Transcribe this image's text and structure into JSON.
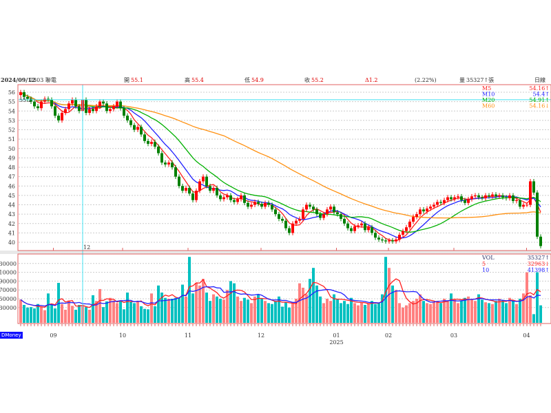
{
  "header": {
    "date": "2024/09/12",
    "symbol": "2303 聯電",
    "open_label": "開",
    "open": "55.1",
    "high_label": "高",
    "high": "55.4",
    "low_label": "低",
    "low": "54.9",
    "close_label": "收",
    "close": "55.2",
    "change": "Δ1.2",
    "change_pct": "(2.22%)",
    "volume_label": "量",
    "volume": "35327↑張",
    "period": "日線"
  },
  "crosshair": {
    "price_label": "55.2",
    "day_label": "12"
  },
  "legend_price": [
    {
      "name": "M5",
      "value": "54.16↑",
      "color": "#ff2020"
    },
    {
      "name": "M10",
      "value": "54.4↑",
      "color": "#2020ff"
    },
    {
      "name": "M20",
      "value": "54.91↑",
      "color": "#00b000"
    },
    {
      "name": "M60",
      "value": "54.16↓",
      "color": "#ff9010"
    }
  ],
  "legend_volume": [
    {
      "name": "VOL",
      "value": "35327↑",
      "color": "#333366"
    },
    {
      "name": "5",
      "value": "32963↓",
      "color": "#ff2020"
    },
    {
      "name": "10",
      "value": "41398↑",
      "color": "#2020ff"
    }
  ],
  "badge": "DMoney",
  "colors": {
    "up": "#ff0000",
    "down": "#008000",
    "vol_up": "#ff8080",
    "vol_down": "#00c0c0",
    "frame": "#e06060",
    "crosshair": "#40e0f0"
  },
  "chart_data": {
    "type": "candlestick",
    "price_axis": {
      "ticks": [
        "40",
        "41",
        "42",
        "43",
        "44",
        "45",
        "46",
        "47",
        "48",
        "49",
        "50",
        "51",
        "52",
        "53",
        "54",
        "55",
        "56"
      ],
      "range": [
        40,
        56
      ]
    },
    "volume_axis": {
      "ticks": [
        "30000",
        "50000",
        "70000",
        "90000",
        "110000",
        "130000"
      ],
      "range": [
        0,
        130000
      ]
    },
    "x_ticks": [
      {
        "label": "09",
        "index": 9.5
      },
      {
        "label": "10",
        "index": 29.6
      },
      {
        "label": "11",
        "index": 48.6
      },
      {
        "label": "12",
        "index": 69.8
      },
      {
        "label": "01",
        "sub": "2025",
        "index": 91.7
      },
      {
        "label": "02",
        "index": 106.8
      },
      {
        "label": "03",
        "index": 125.8
      },
      {
        "label": "04",
        "index": 146.9
      }
    ],
    "crosshair_index": 18,
    "close": [
      56,
      55.5,
      55.3,
      55,
      54.5,
      54.3,
      55,
      55.3,
      55.2,
      54.5,
      53.5,
      53,
      53.8,
      54.2,
      54.8,
      55.2,
      54.5,
      54,
      55.2,
      53.8,
      54.2,
      54,
      54.5,
      55,
      54.8,
      54,
      54.2,
      54.5,
      55,
      54.3,
      53.5,
      53,
      52.5,
      52,
      52.3,
      51.5,
      50.8,
      50.5,
      50.7,
      50.2,
      49.5,
      48.5,
      48.3,
      48.5,
      48,
      47,
      46,
      45.5,
      45.8,
      45.2,
      44.5,
      45.5,
      46.5,
      47,
      46,
      45.5,
      45.8,
      45,
      44.6,
      44.8,
      45,
      44.5,
      44.3,
      44.6,
      45,
      44.2,
      43.8,
      44,
      44.3,
      44.1,
      43.8,
      44.2,
      44,
      43.5,
      43,
      42.5,
      42.3,
      41.5,
      41,
      42,
      42.3,
      42.5,
      43.5,
      44,
      43.8,
      43.5,
      43,
      42.6,
      43,
      43.5,
      43.8,
      43.2,
      43,
      42.5,
      42,
      41.5,
      41.2,
      41.7,
      41.8,
      42,
      41.3,
      41.6,
      41,
      40.5,
      40.3,
      40.2,
      40.1,
      40.2,
      40.1,
      40.3,
      40.8,
      41.2,
      41.6,
      42.2,
      42.7,
      43,
      43.5,
      43.3,
      43.6,
      43.8,
      44,
      44.3,
      44.2,
      44.5,
      44.8,
      44.6,
      44.8,
      44.9,
      44.5,
      44.2,
      44.6,
      44.9,
      45,
      44.8,
      44.7,
      45,
      44.9,
      45.1,
      44.9,
      45,
      44.8,
      44.7,
      45,
      44.4,
      44.5,
      43.8,
      44,
      44,
      46.5,
      45.3,
      40.6,
      39.6
    ],
    "volume": [
      48,
      36,
      30,
      31,
      28,
      38,
      32,
      24,
      62,
      36,
      28,
      86,
      38,
      25,
      46,
      34,
      25,
      36,
      34,
      31,
      25,
      58,
      45,
      72,
      31,
      44,
      52,
      46,
      40,
      44,
      26,
      64,
      44,
      40,
      44,
      33,
      27,
      26,
      62,
      33,
      80,
      64,
      52,
      50,
      50,
      52,
      52,
      82,
      55,
      145,
      62,
      86,
      80,
      95,
      64,
      45,
      60,
      55,
      50,
      48,
      70,
      90,
      85,
      55,
      45,
      52,
      48,
      40,
      55,
      60,
      50,
      45,
      40,
      38,
      45,
      55,
      32,
      42,
      30,
      40,
      50,
      85,
      75,
      60,
      95,
      120,
      80,
      55,
      40,
      50,
      45,
      60,
      50,
      40,
      45,
      38,
      52,
      40,
      35,
      42,
      36,
      40,
      45,
      38,
      40,
      60,
      145,
      120,
      80,
      70,
      40,
      30,
      35,
      40,
      45,
      50,
      60,
      45,
      40,
      38,
      42,
      45,
      40,
      50,
      44,
      62,
      48,
      40,
      45,
      52,
      55,
      50,
      45,
      60,
      48,
      42,
      40,
      38,
      45,
      50,
      47,
      40,
      52,
      45,
      38,
      50,
      62,
      110,
      58,
      15,
      110,
      35
    ],
    "volume_unit": 1000,
    "moving_averages": {
      "price": [
        5,
        10,
        20,
        60
      ],
      "volume": [
        5,
        10
      ]
    }
  }
}
